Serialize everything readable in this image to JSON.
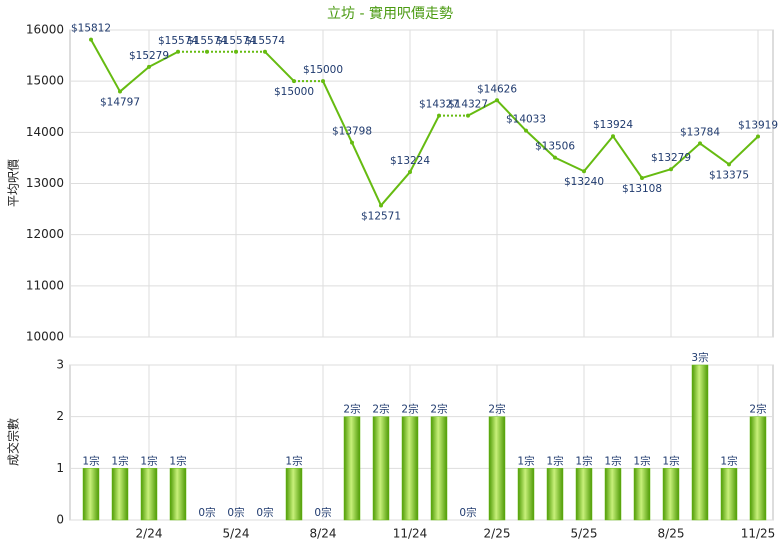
{
  "chart_data": [
    {
      "type": "line",
      "title": "立坊 - 實用呎價走勢",
      "ylabel": "平均呎價",
      "color": "#66bb11",
      "values": [
        15812,
        14797,
        15279,
        15574,
        15574,
        15574,
        15574,
        15000,
        15000,
        13798,
        12571,
        13224,
        14327,
        14327,
        14626,
        14033,
        13506,
        13240,
        13924,
        13108,
        13279,
        13784,
        13375,
        13919
      ],
      "value_labels": [
        "$15812",
        "$14797",
        "$15279",
        "$15574",
        "$15574",
        "$15574",
        "$15574",
        "$15000",
        "$15000",
        "$13798",
        "$12571",
        "$13224",
        "$14327",
        "$14327",
        "$14626",
        "$14033",
        "$13506",
        "$13240",
        "$13924",
        "$13108",
        "$13279",
        "$13784",
        "$13375",
        "$13919"
      ],
      "ylim": [
        10000,
        16000
      ],
      "yticks": [
        10000,
        11000,
        12000,
        13000,
        14000,
        15000,
        16000
      ],
      "grid": true
    },
    {
      "type": "bar",
      "ylabel": "成交宗數",
      "color": "#66bb11",
      "categories": [
        null,
        null,
        "2/24",
        null,
        null,
        "5/24",
        null,
        null,
        "8/24",
        null,
        null,
        "11/24",
        null,
        null,
        "2/25",
        null,
        null,
        "5/25",
        null,
        null,
        "8/25",
        null,
        null,
        "11/25"
      ],
      "values": [
        1,
        1,
        1,
        1,
        0,
        0,
        0,
        1,
        0,
        2,
        2,
        2,
        2,
        0,
        2,
        1,
        1,
        1,
        1,
        1,
        1,
        3,
        1,
        2
      ],
      "value_labels": [
        "1宗",
        "1宗",
        "1宗",
        "1宗",
        "0宗",
        "0宗",
        "0宗",
        "1宗",
        "0宗",
        "2宗",
        "2宗",
        "2宗",
        "2宗",
        "0宗",
        "2宗",
        "1宗",
        "1宗",
        "1宗",
        "1宗",
        "1宗",
        "1宗",
        "3宗",
        "1宗",
        "2宗"
      ],
      "ylim": [
        0,
        3
      ],
      "yticks": [
        0,
        1,
        2,
        3
      ],
      "grid": true
    }
  ]
}
